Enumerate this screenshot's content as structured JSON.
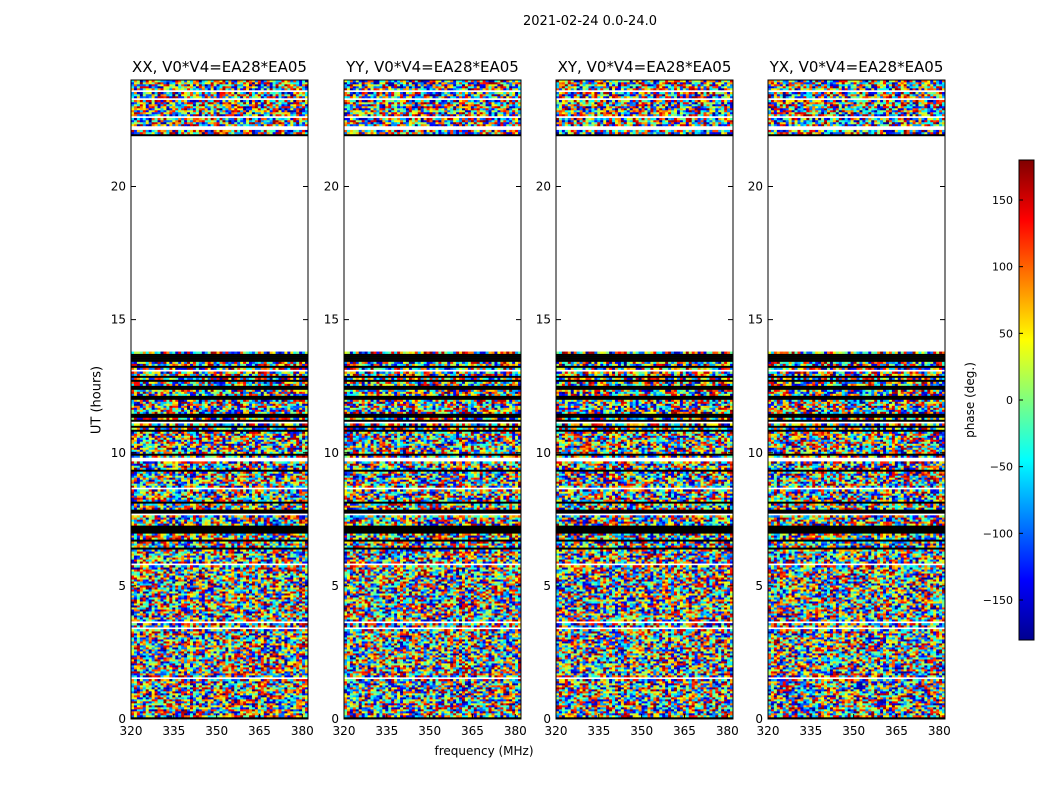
{
  "figure": {
    "title": "2021-02-24 0.0-24.0",
    "ylabel": "UT (hours)",
    "xlabel": "frequency (MHz)",
    "colorbar_label": "phase (deg.)"
  },
  "chart_data": {
    "type": "heatmap",
    "x_range": [
      320,
      382
    ],
    "y_range": [
      0,
      24
    ],
    "x_ticks": [
      320,
      335,
      350,
      365,
      380
    ],
    "y_ticks": [
      0,
      5,
      10,
      15,
      20
    ],
    "color_scale": {
      "name": "jet",
      "range": [
        -180,
        180
      ],
      "ticks": [
        -150,
        -100,
        -50,
        0,
        50,
        100,
        150
      ]
    },
    "panels": [
      {
        "title": "XX, V0*V4=EA28*EA05"
      },
      {
        "title": "YY, V0*V4=EA28*EA05"
      },
      {
        "title": "XY, V0*V4=EA28*EA05"
      },
      {
        "title": "YX, V0*V4=EA28*EA05"
      }
    ],
    "data_gaps_hours": [
      [
        13.8,
        21.9
      ]
    ],
    "flagged_bands_hours": [
      1.55,
      3.4,
      3.65,
      5.8,
      7.7,
      8.65,
      9.75,
      11.15,
      13.1,
      22.2,
      22.6,
      23.3,
      23.6
    ]
  }
}
